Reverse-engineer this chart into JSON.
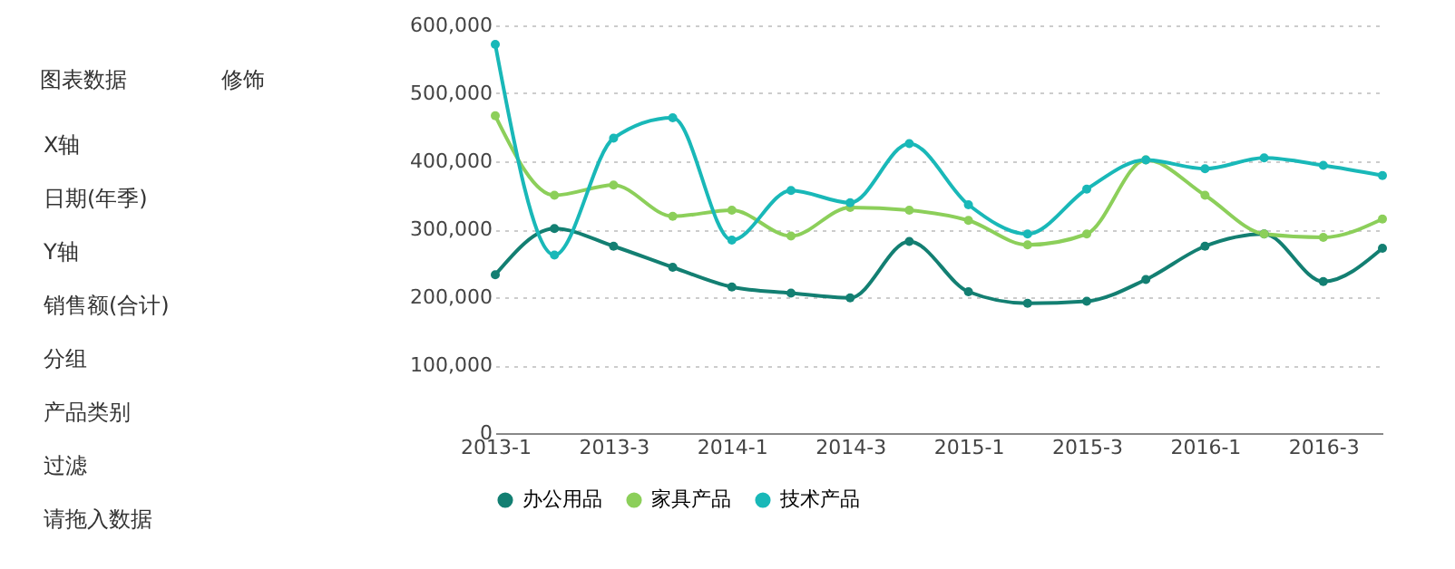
{
  "chart_data": {
    "type": "line",
    "categories": [
      "2013-1",
      null,
      "2013-3",
      null,
      "2014-1",
      null,
      "2014-3",
      null,
      "2015-1",
      null,
      "2015-3",
      null,
      "2016-1",
      null,
      "2016-3",
      null
    ],
    "series": [
      {
        "name": "办公用品",
        "color": "#137f72",
        "values": [
          233000,
          301000,
          275000,
          244000,
          215000,
          206000,
          199000,
          282000,
          208000,
          191000,
          194000,
          226000,
          275000,
          293000,
          223000,
          272000
        ]
      },
      {
        "name": "家具产品",
        "color": "#8ccf5a",
        "values": [
          467000,
          350000,
          365000,
          319000,
          328000,
          290000,
          332000,
          328000,
          313000,
          277000,
          293000,
          402000,
          350000,
          293000,
          288000,
          315000
        ]
      },
      {
        "name": "技术产品",
        "color": "#19b8b8",
        "values": [
          572000,
          262000,
          434000,
          464000,
          284000,
          357000,
          339000,
          426000,
          336000,
          293000,
          359000,
          402000,
          389000,
          405000,
          394000,
          379000
        ]
      }
    ],
    "ylim": [
      0,
      600000
    ],
    "yticks": [
      0,
      {
        "value": 100000,
        "label": "100,000"
      },
      {
        "value": 200000,
        "label": "200,000"
      },
      {
        "value": 300000,
        "label": "300,000"
      },
      {
        "value": 400000,
        "label": "400,000"
      },
      {
        "value": 500000,
        "label": "500,000"
      },
      {
        "value": 600000,
        "label": "600,000"
      }
    ],
    "grid": "y",
    "legend": "bottom",
    "marker": "circle",
    "line_style": "solid",
    "annotations": [
      "图表数据",
      "修饰",
      "X轴",
      "日期(年季)",
      "Y轴",
      "销售额(合计)",
      "分组",
      "产品类别",
      "过滤",
      "请拖入数据"
    ]
  }
}
